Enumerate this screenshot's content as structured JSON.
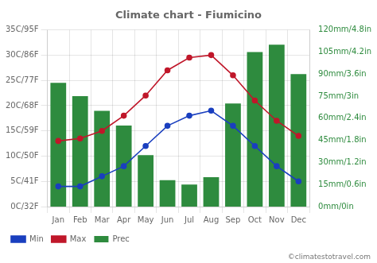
{
  "chart_data": {
    "type": "bar",
    "title": "Climate chart - Fiumicino",
    "categories": [
      "Jan",
      "Feb",
      "Mar",
      "Apr",
      "May",
      "Jun",
      "Jul",
      "Aug",
      "Sep",
      "Oct",
      "Nov",
      "Dec"
    ],
    "series": [
      {
        "name": "Prec",
        "type": "bar",
        "axis": "y2",
        "color": "#2e8b3e",
        "values": [
          84,
          75,
          65,
          55,
          35,
          18,
          15,
          20,
          70,
          105,
          110,
          90
        ]
      },
      {
        "name": "Min",
        "type": "line",
        "color": "#1a3fbf",
        "marker": "circle",
        "values": [
          4,
          4,
          6,
          8,
          12,
          16,
          18,
          19,
          16,
          12,
          8,
          5
        ]
      },
      {
        "name": "Max",
        "type": "line",
        "color": "#c0172a",
        "marker": "circle",
        "values": [
          13,
          13.5,
          15,
          18,
          22,
          27,
          29.5,
          30,
          26,
          21,
          17,
          14
        ]
      }
    ],
    "ylim": [
      0,
      35
    ],
    "yticks": [
      {
        "value": 0,
        "label": "0C/32F"
      },
      {
        "value": 5,
        "label": "5C/41F"
      },
      {
        "value": 10,
        "label": "10C/50F"
      },
      {
        "value": 15,
        "label": "15C/59F"
      },
      {
        "value": 20,
        "label": "20C/68F"
      },
      {
        "value": 25,
        "label": "25C/77F"
      },
      {
        "value": 30,
        "label": "30C/86F"
      },
      {
        "value": 35,
        "label": "35C/95F"
      }
    ],
    "y2lim": [
      0,
      120
    ],
    "y2ticks": [
      {
        "value": 0,
        "label": "0mm/0in"
      },
      {
        "value": 15,
        "label": "15mm/0.6in"
      },
      {
        "value": 30,
        "label": "30mm/1.2in"
      },
      {
        "value": 45,
        "label": "45mm/1.8in"
      },
      {
        "value": 60,
        "label": "60mm/2.4in"
      },
      {
        "value": 75,
        "label": "75mm/3in"
      },
      {
        "value": 90,
        "label": "90mm/3.6in"
      },
      {
        "value": 105,
        "label": "105mm/4.2in"
      },
      {
        "value": 120,
        "label": "120mm/4.8in"
      }
    ],
    "grid": true,
    "legend": "bottom",
    "annotations": [
      "©climatestotravel.com"
    ]
  }
}
